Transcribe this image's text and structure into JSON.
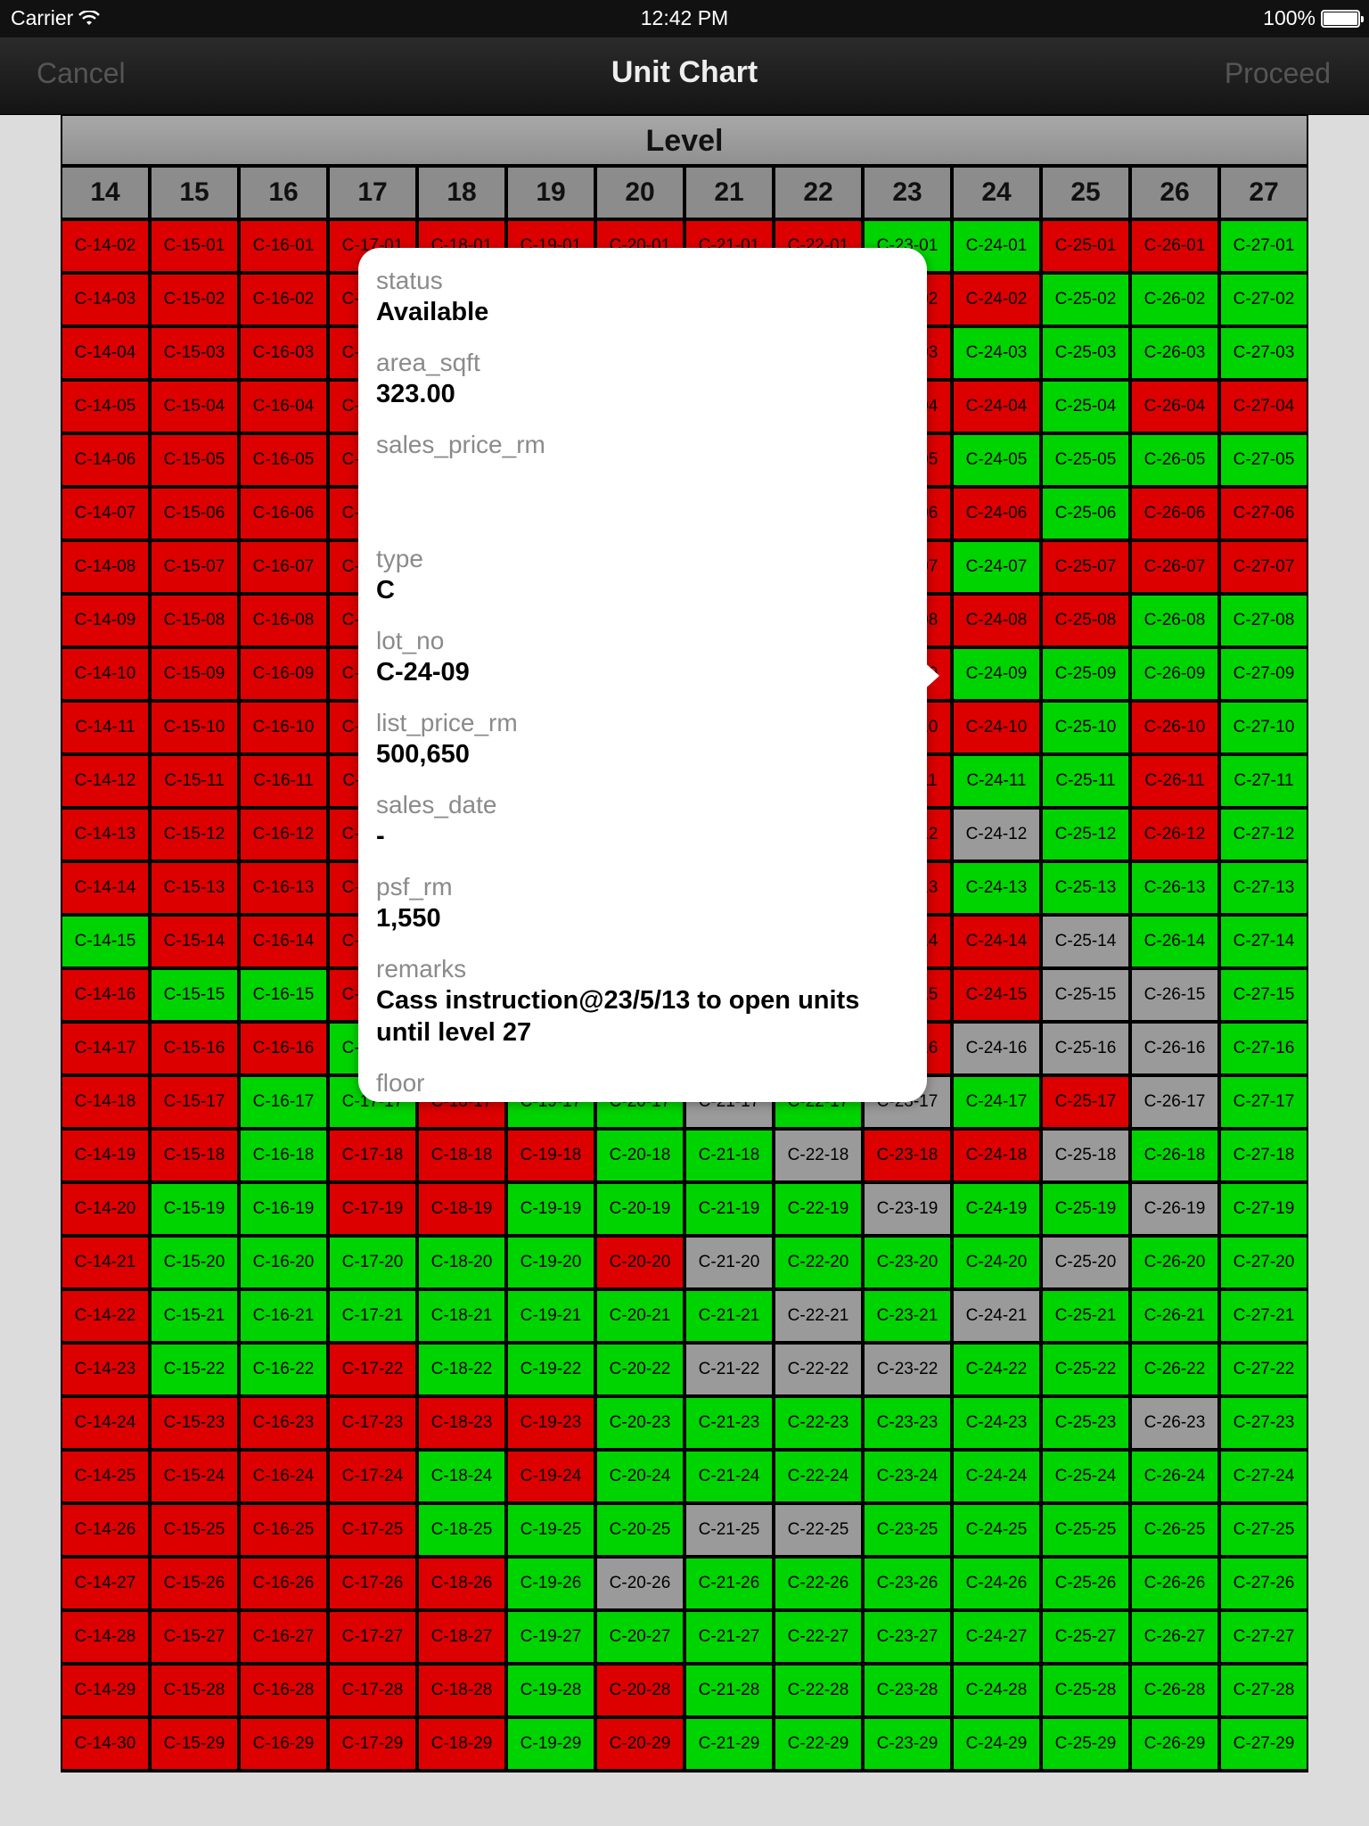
{
  "status_bar": {
    "carrier": "Carrier",
    "time": "12:42 PM",
    "battery": "100%"
  },
  "nav": {
    "cancel_label": "Cancel",
    "title": "Unit Chart",
    "proceed_label": "Proceed"
  },
  "grid": {
    "level_label": "Level",
    "columns": [
      "14",
      "15",
      "16",
      "17",
      "18",
      "19",
      "20",
      "21",
      "22",
      "23",
      "24",
      "25",
      "26",
      "27"
    ],
    "column_statuses": {
      "14": "SSSSSSSSSSSSSASSSSSSSSSSSSSSS",
      "15": "SSSSSSSSSSSSSSASSSAAAASSSSSSS",
      "16": "SSSSSSSSSSSSSSASAAAAAASSSSSSS",
      "17": "SSSSSSSSSSSSSSSAASSAASSSSSSSS",
      "18": "SSSSSSSSSSSSSSSSSSSAAASAASSSS",
      "19": "SSSSSSSSSSSSSSSSASAAAASSAAAAA",
      "20": "SSSSSSSSSSSSSSSSAAASAAAAARASS",
      "21": "SSSSSSSSSSSSSSSSRAARARAARAAAA",
      "22": "SSSSSSSSSSSSSSSSARAARRAARAAAA",
      "23": "ASSSSSSSSSSSSSSSRSRAARAAAAAAA",
      "24": "ASASASASASARASSRASAARAAAAAAAA",
      "25": "SAAAAASSAAAAARRRSRARAAAAAAAAA",
      "26": "SAASASSAASSSAARRRARAAARAAAAAA",
      "27": "AAASASSAAAAAAAAAAAAAAAAAAAAAA"
    },
    "status_colors": {
      "S": "#dd0000",
      "A": "#00d400",
      "R": "#9a9a9a"
    },
    "cells": []
  },
  "popover": {
    "fields": [
      {
        "label": "status",
        "value": "Available"
      },
      {
        "label": "area_sqft",
        "value": "323.00"
      },
      {
        "label": "sales_price_rm",
        "value": ""
      },
      {
        "label": "type",
        "value": "C"
      },
      {
        "label": "lot_no",
        "value": "C-24-09"
      },
      {
        "label": "list_price_rm",
        "value": "500,650"
      },
      {
        "label": "sales_date",
        "value": "-"
      },
      {
        "label": "psf_rm",
        "value": "1,550"
      },
      {
        "label": "remarks",
        "value": "Cass instruction@23/5/13 to open units until level 27"
      },
      {
        "label": "floor",
        "value": ""
      }
    ]
  }
}
